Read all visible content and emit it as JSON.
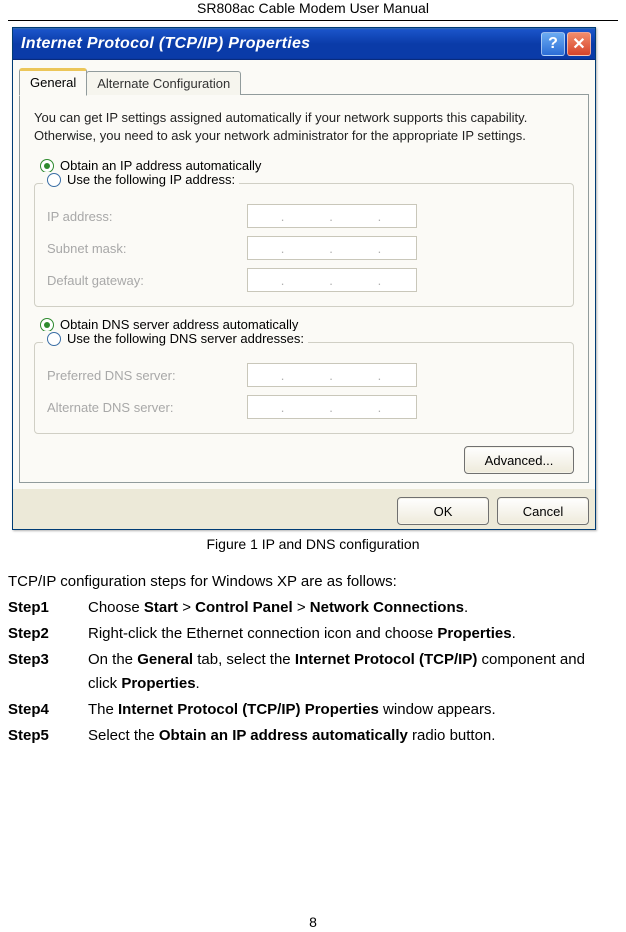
{
  "header": "SR808ac Cable Modem User Manual",
  "dialog": {
    "title": "Internet Protocol (TCP/IP) Properties",
    "tabs": {
      "general": "General",
      "alt": "Alternate Configuration"
    },
    "intro": "You can get IP settings assigned automatically if your network supports this capability. Otherwise, you need to ask your network administrator for the appropriate IP settings.",
    "radio_auto_ip": "Obtain an IP address automatically",
    "radio_use_ip": "Use the following IP address:",
    "ip_address": "IP address:",
    "subnet": "Subnet mask:",
    "gateway": "Default gateway:",
    "radio_auto_dns": "Obtain DNS server address automatically",
    "radio_use_dns": "Use the following DNS server addresses:",
    "pref_dns": "Preferred DNS server:",
    "alt_dns": "Alternate DNS server:",
    "advanced": "Advanced...",
    "ok": "OK",
    "cancel": "Cancel"
  },
  "caption": "Figure 1  IP and DNS configuration",
  "doc": {
    "intro": "TCP/IP configuration steps for Windows XP are as follows:",
    "steps": {
      "s1": {
        "label": "Step1",
        "html": "Choose <b>Start</b> > <b>Control Panel</b> > <b>Network Connections</b>."
      },
      "s2": {
        "label": "Step2",
        "html": "Right-click the Ethernet connection icon and choose <b>Properties</b>."
      },
      "s3": {
        "label": "Step3",
        "html": "On the <b>General</b> tab, select the <b>Internet Protocol (TCP/IP)</b> component and click <b>Properties</b>."
      },
      "s4": {
        "label": "Step4",
        "html": "The <b>Internet Protocol (TCP/IP) Properties</b> window appears."
      },
      "s5": {
        "label": "Step5",
        "html": "Select the <b>Obtain an IP address automatically</b> radio button."
      }
    }
  },
  "page_number": "8"
}
